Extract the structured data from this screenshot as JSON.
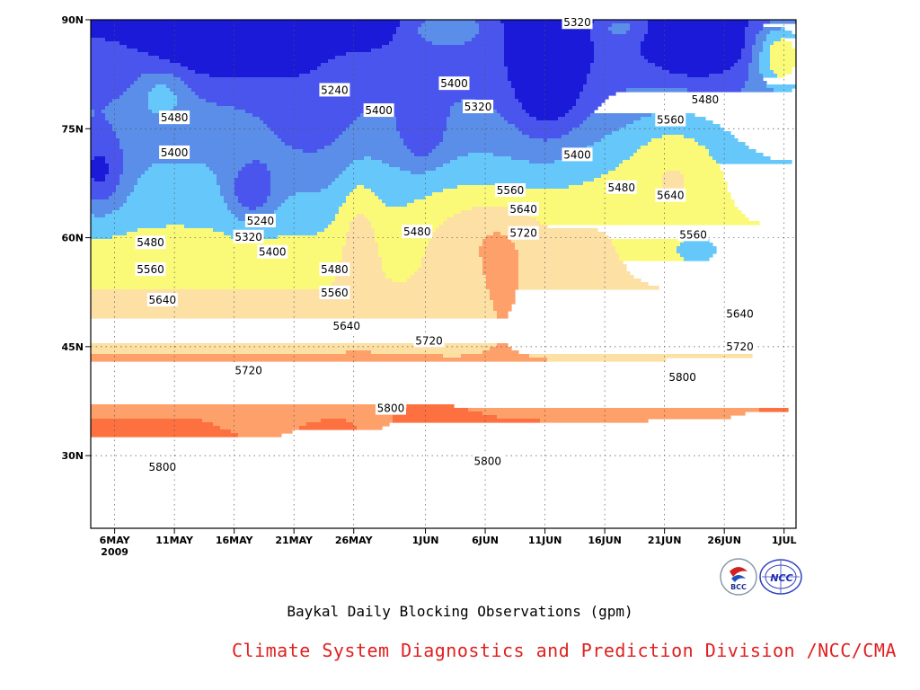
{
  "chart_data": {
    "type": "contour",
    "title": "Baykal Daily Blocking Observations (gpm)",
    "xlabel": "",
    "ylabel": "",
    "x_start": "2009-05-04",
    "x_end": "2009-07-02",
    "x_ticks": [
      {
        "label": "6MAY",
        "day": 6,
        "sub": "2009"
      },
      {
        "label": "11MAY",
        "day": 11
      },
      {
        "label": "16MAY",
        "day": 16
      },
      {
        "label": "21MAY",
        "day": 21
      },
      {
        "label": "26MAY",
        "day": 26
      },
      {
        "label": "1JUN",
        "day": 32
      },
      {
        "label": "6JUN",
        "day": 37
      },
      {
        "label": "11JUN",
        "day": 42
      },
      {
        "label": "16JUN",
        "day": 47
      },
      {
        "label": "21JUN",
        "day": 52
      },
      {
        "label": "26JUN",
        "day": 57
      },
      {
        "label": "1JUL",
        "day": 62
      }
    ],
    "y_ticks": [
      {
        "label": "30N",
        "value": 30
      },
      {
        "label": "45N",
        "value": 45
      },
      {
        "label": "60N",
        "value": 60
      },
      {
        "label": "75N",
        "value": 75
      },
      {
        "label": "90N",
        "value": 90
      }
    ],
    "ylim": [
      20,
      90
    ],
    "grid": true,
    "contour_interval": 80,
    "levels": [
      {
        "value": 5160,
        "color": "#1a1ad8"
      },
      {
        "value": 5240,
        "color": "#4a55ee"
      },
      {
        "value": 5320,
        "color": "#5a8ee8"
      },
      {
        "value": 5400,
        "color": "#66c8fa"
      },
      {
        "value": 5480,
        "color": "#fafa78"
      },
      {
        "value": 5560,
        "color": "#fde0a4"
      },
      {
        "value": 5640,
        "color": "#fda06a"
      },
      {
        "value": 5720,
        "color": "#fd7040"
      },
      {
        "value": 5800,
        "color": "#f67080"
      }
    ],
    "contour_labels": [
      {
        "text": "5320",
        "day": 44.7,
        "lat": 89.6
      },
      {
        "text": "5240",
        "day": 24.4,
        "lat": 80.3
      },
      {
        "text": "5400",
        "day": 34.4,
        "lat": 81.2
      },
      {
        "text": "5480",
        "day": 11.0,
        "lat": 76.5
      },
      {
        "text": "5400",
        "day": 28.1,
        "lat": 77.5
      },
      {
        "text": "5320",
        "day": 36.4,
        "lat": 78.0
      },
      {
        "text": "5480",
        "day": 55.4,
        "lat": 79.0
      },
      {
        "text": "5560",
        "day": 52.5,
        "lat": 76.2
      },
      {
        "text": "5400",
        "day": 11.0,
        "lat": 71.7
      },
      {
        "text": "5400",
        "day": 44.7,
        "lat": 71.4
      },
      {
        "text": "5480",
        "day": 48.4,
        "lat": 66.9
      },
      {
        "text": "5560",
        "day": 39.1,
        "lat": 66.5
      },
      {
        "text": "5640",
        "day": 52.5,
        "lat": 65.8
      },
      {
        "text": "5640",
        "day": 40.2,
        "lat": 63.9
      },
      {
        "text": "5240",
        "day": 18.2,
        "lat": 62.3
      },
      {
        "text": "5480",
        "day": 31.3,
        "lat": 60.8
      },
      {
        "text": "5720",
        "day": 40.2,
        "lat": 60.6
      },
      {
        "text": "5560",
        "day": 54.4,
        "lat": 60.4
      },
      {
        "text": "5320",
        "day": 17.2,
        "lat": 60.1
      },
      {
        "text": "5480",
        "day": 9.0,
        "lat": 59.3
      },
      {
        "text": "5400",
        "day": 19.2,
        "lat": 58.0
      },
      {
        "text": "5560",
        "day": 9.0,
        "lat": 55.6
      },
      {
        "text": "5480",
        "day": 24.4,
        "lat": 55.6
      },
      {
        "text": "5560",
        "day": 24.4,
        "lat": 52.4
      },
      {
        "text": "5640",
        "day": 10.0,
        "lat": 51.4
      },
      {
        "text": "5640",
        "day": 58.3,
        "lat": 49.5
      },
      {
        "text": "5640",
        "day": 25.4,
        "lat": 47.8
      },
      {
        "text": "5720",
        "day": 58.3,
        "lat": 45.0
      },
      {
        "text": "5720",
        "day": 32.3,
        "lat": 45.8
      },
      {
        "text": "5720",
        "day": 17.2,
        "lat": 41.7
      },
      {
        "text": "5800",
        "day": 53.5,
        "lat": 40.8
      },
      {
        "text": "5800",
        "day": 29.1,
        "lat": 36.5
      },
      {
        "text": "5800",
        "day": 10.0,
        "lat": 28.4
      },
      {
        "text": "5800",
        "day": 37.2,
        "lat": 29.2
      }
    ]
  },
  "footer": {
    "credit": "Climate System Diagnostics and Prediction Division /NCC/CMA",
    "logo_left": "BCC",
    "logo_right": "NCC"
  }
}
